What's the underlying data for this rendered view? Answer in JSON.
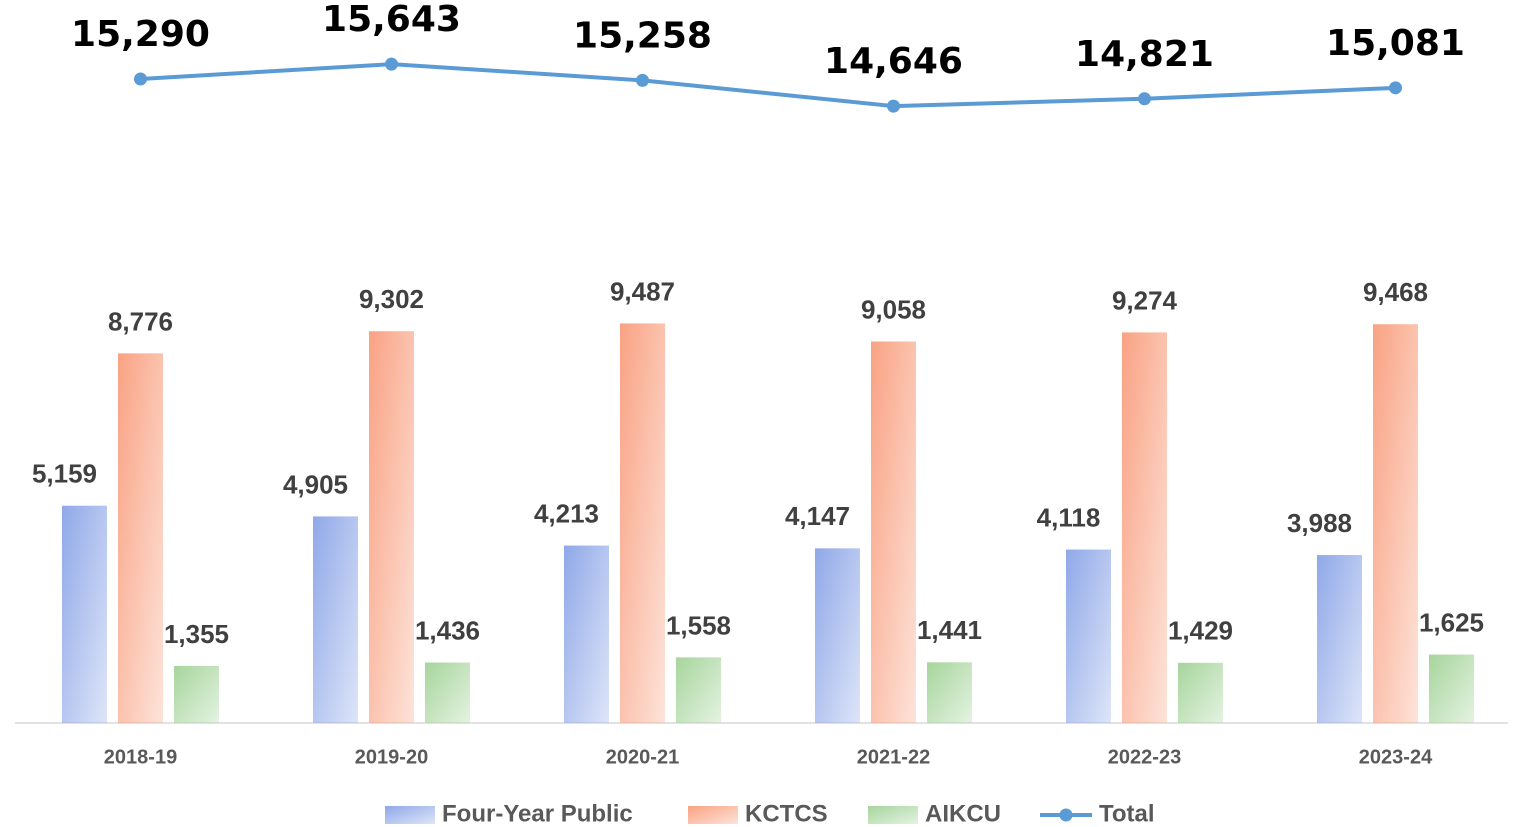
{
  "chart_data": {
    "type": "bar",
    "categories": [
      "2018-19",
      "2019-20",
      "2020-21",
      "2021-22",
      "2022-23",
      "2023-24"
    ],
    "series": [
      {
        "name": "Four-Year Public",
        "color": "#8fa8e8",
        "values": [
          5159,
          4905,
          4213,
          4147,
          4118,
          3988
        ],
        "value_labels": [
          "5,159",
          "4,905",
          "4,213",
          "4,147",
          "4,118",
          "3,988"
        ]
      },
      {
        "name": "KCTCS",
        "color": "#f9a283",
        "values": [
          8776,
          9302,
          9487,
          9058,
          9274,
          9468
        ],
        "value_labels": [
          "8,776",
          "9,302",
          "9,487",
          "9,058",
          "9,274",
          "9,468"
        ]
      },
      {
        "name": "AIKCU",
        "color": "#a6d59c",
        "values": [
          1355,
          1436,
          1558,
          1441,
          1429,
          1625
        ],
        "value_labels": [
          "1,355",
          "1,436",
          "1,558",
          "1,441",
          "1,429",
          "1,625"
        ]
      },
      {
        "name": "Total",
        "type": "line",
        "color": "#5b9bd5",
        "values": [
          15290,
          15643,
          15258,
          14646,
          14821,
          15081
        ],
        "value_labels": [
          "15,290",
          "15,643",
          "15,258",
          "14,646",
          "14,821",
          "15,081"
        ]
      }
    ],
    "ylim": [
      0,
      17000
    ],
    "grid": false,
    "legend": "bottom"
  }
}
